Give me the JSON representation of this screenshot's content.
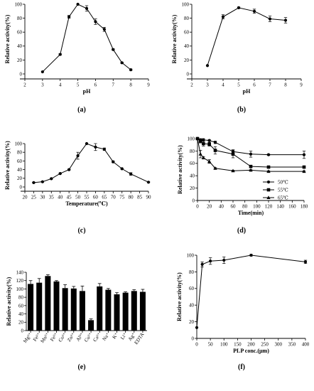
{
  "figure": {
    "panels": [
      "(a)",
      "(b)",
      "(c)",
      "(d)",
      "(e)",
      "(f)"
    ]
  },
  "chart_data": [
    {
      "id": "a",
      "type": "line",
      "xlabel": "pH",
      "ylabel": "Relative activity(%)",
      "xlim": [
        2,
        9
      ],
      "ylim": [
        0,
        100
      ],
      "xticks": [
        2,
        3,
        4,
        5,
        6,
        7,
        8,
        9
      ],
      "yticks": [
        0,
        20,
        40,
        60,
        80,
        100
      ],
      "marker": "circle",
      "series": [
        {
          "x": [
            3,
            4,
            4.5,
            5,
            5.5,
            6,
            6.5,
            7,
            7.5,
            8
          ],
          "y": [
            3,
            28,
            82,
            100,
            94,
            75,
            64,
            35,
            16,
            6
          ],
          "err": [
            0,
            1,
            2,
            0,
            4,
            4,
            3,
            1,
            1,
            1
          ]
        }
      ]
    },
    {
      "id": "b",
      "type": "line",
      "xlabel": "pH",
      "ylabel": "Relative activity(%)",
      "xlim": [
        2,
        9
      ],
      "ylim": [
        0,
        100
      ],
      "xticks": [
        2,
        3,
        4,
        5,
        6,
        7,
        8,
        9
      ],
      "yticks": [
        0,
        20,
        40,
        60,
        80,
        100
      ],
      "marker": "circle",
      "series": [
        {
          "x": [
            3,
            4,
            5,
            6,
            7,
            8
          ],
          "y": [
            12,
            82,
            95,
            90,
            79,
            77
          ],
          "err": [
            0,
            3,
            1,
            3,
            4,
            4
          ]
        }
      ]
    },
    {
      "id": "c",
      "type": "line",
      "xlabel": "Temperature(℃)",
      "ylabel": "Relative activity(%)",
      "xlim": [
        20,
        90
      ],
      "ylim": [
        0,
        100
      ],
      "xticks": [
        20,
        25,
        30,
        35,
        40,
        45,
        50,
        55,
        60,
        65,
        70,
        75,
        80,
        85,
        90
      ],
      "yticks": [
        0,
        20,
        40,
        60,
        80,
        100
      ],
      "marker": "circle",
      "series": [
        {
          "x": [
            25,
            30,
            35,
            40,
            45,
            50,
            55,
            60,
            65,
            70,
            75,
            80,
            90
          ],
          "y": [
            10,
            12,
            19,
            31,
            40,
            72,
            100,
            92,
            87,
            58,
            42,
            30,
            11
          ],
          "err": [
            1,
            1,
            1,
            1,
            1,
            8,
            0,
            8,
            3,
            2,
            1,
            3,
            1
          ]
        }
      ]
    },
    {
      "id": "d",
      "type": "line",
      "xlabel": "Time(min)",
      "ylabel": "Relative activity(%)",
      "xlim": [
        0,
        180
      ],
      "ylim": [
        0,
        100
      ],
      "xticks": [
        0,
        20,
        40,
        60,
        80,
        100,
        120,
        140,
        160,
        180
      ],
      "yticks": [
        0,
        20,
        40,
        60,
        80,
        100
      ],
      "legend_position": "lower-right",
      "series": [
        {
          "name": "50℃",
          "marker": "circle",
          "x": [
            0,
            5,
            10,
            20,
            30,
            60,
            90,
            120,
            180
          ],
          "y": [
            100,
            98,
            98,
            97,
            94,
            79,
            75,
            74,
            74
          ],
          "err": [
            0,
            2,
            2,
            1,
            2,
            3,
            5,
            1,
            6
          ]
        },
        {
          "name": "55℃",
          "marker": "square",
          "x": [
            0,
            5,
            10,
            20,
            30,
            60,
            90,
            120,
            180
          ],
          "y": [
            100,
            96,
            92,
            91,
            81,
            75,
            55,
            54,
            54
          ],
          "err": [
            0,
            3,
            4,
            3,
            6,
            6,
            2,
            1,
            1
          ]
        },
        {
          "name": "65℃",
          "marker": "triangle",
          "x": [
            0,
            5,
            10,
            20,
            30,
            60,
            90,
            120,
            180
          ],
          "y": [
            100,
            75,
            69,
            63,
            52,
            48,
            49,
            47,
            47
          ],
          "err": [
            0,
            6,
            2,
            3,
            1,
            1,
            1,
            1,
            1
          ]
        }
      ]
    },
    {
      "id": "e",
      "type": "bar",
      "xlabel": "",
      "ylabel": "Relative activity(%)",
      "ylim": [
        0,
        140
      ],
      "yticks": [
        0,
        20,
        40,
        60,
        80,
        100,
        120,
        140
      ],
      "categories": [
        "Mg²⁺",
        "Fe²⁺",
        "Mn²⁺",
        "Fe³⁺",
        "Co²⁺",
        "Zn²⁺",
        "Al³⁺",
        "Cu²⁺",
        "Ca²⁺",
        "Na⁺",
        "K⁺",
        "Li⁺",
        "Ag⁺",
        "EDTA"
      ],
      "values": [
        112,
        115,
        131,
        118,
        102,
        101,
        95,
        25,
        106,
        98,
        87,
        91,
        95,
        93
      ],
      "err": [
        8,
        10,
        3,
        2,
        8,
        5,
        12,
        3,
        7,
        3,
        4,
        2,
        3,
        6
      ]
    },
    {
      "id": "f",
      "type": "line",
      "xlabel": "PLP conc.(μm)",
      "ylabel": "Relative activity(%)",
      "xlim": [
        0,
        400
      ],
      "ylim": [
        0,
        100
      ],
      "xticks": [
        0,
        50,
        100,
        150,
        200,
        250,
        300,
        350,
        400
      ],
      "yticks": [
        0,
        20,
        40,
        60,
        80,
        100
      ],
      "marker": "circle",
      "series": [
        {
          "x": [
            0,
            20,
            50,
            100,
            200,
            400
          ],
          "y": [
            13,
            89,
            93,
            94,
            100,
            92
          ],
          "err": [
            0,
            3,
            4,
            4,
            1,
            2
          ]
        }
      ]
    }
  ]
}
